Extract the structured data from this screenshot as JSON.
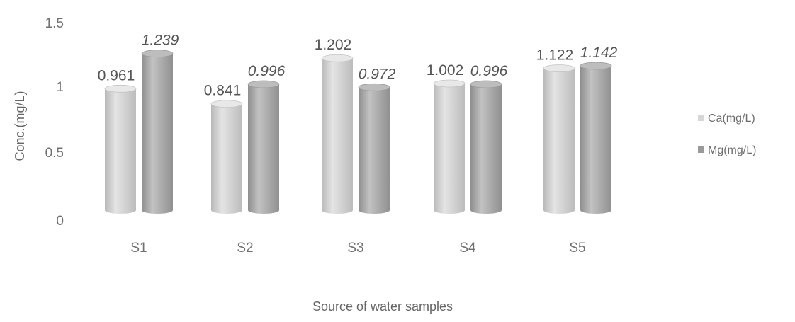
{
  "chart_data": {
    "type": "bar",
    "title": "",
    "xlabel": "Source of water samples",
    "ylabel": "Conc.(mg/L)",
    "categories": [
      "S1",
      "S2",
      "S3",
      "S4",
      "S5"
    ],
    "series": [
      {
        "name": "Ca(mg/L)",
        "values": [
          0.961,
          0.841,
          1.202,
          1.002,
          1.122
        ],
        "labels": [
          "0.961",
          "0.841",
          "1.202",
          "1.002",
          "1.122"
        ],
        "color": "#cfcfcf"
      },
      {
        "name": "Mg(mg/L)",
        "values": [
          1.239,
          0.996,
          0.972,
          0.996,
          1.142
        ],
        "labels": [
          "1.239",
          "0.996",
          "0.972",
          "0.996",
          "1.142"
        ],
        "color": "#a8a8a8"
      }
    ],
    "ylim": [
      0,
      1.5
    ],
    "yticks": [
      "0",
      "0.5",
      "1",
      "1.5"
    ],
    "grid": false,
    "legend_position": "right",
    "bar_shape": "cylinder"
  }
}
